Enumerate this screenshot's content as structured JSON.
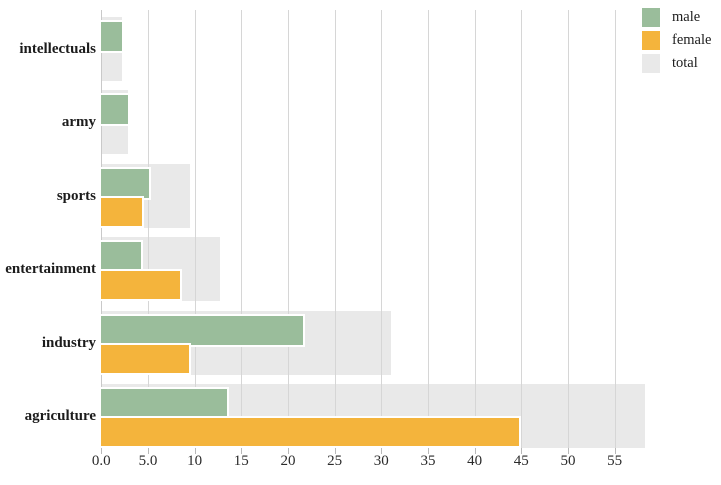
{
  "chart_data": {
    "type": "bar",
    "orientation": "horizontal",
    "title": "",
    "xlabel": "",
    "ylabel": "",
    "categories": [
      "intellectuals",
      "army",
      "sports",
      "entertainment",
      "industry",
      "agriculture"
    ],
    "series": [
      {
        "name": "male",
        "color": "#9abd9b",
        "values": [
          2.2,
          2.9,
          5.1,
          4.3,
          21.6,
          13.5
        ]
      },
      {
        "name": "female",
        "color": "#f4b43c",
        "values": [
          0.0,
          0.0,
          4.4,
          8.4,
          9.4,
          44.8
        ]
      },
      {
        "name": "total",
        "color": "#e9e9e9",
        "values": [
          2.2,
          2.9,
          9.5,
          12.7,
          31.0,
          58.3
        ]
      }
    ],
    "x_ticks": [
      {
        "label": "0.0",
        "value": 0
      },
      {
        "label": "5.0",
        "value": 5
      },
      {
        "label": "10",
        "value": 10
      },
      {
        "label": "15",
        "value": 15
      },
      {
        "label": "20",
        "value": 20
      },
      {
        "label": "25",
        "value": 25
      },
      {
        "label": "30",
        "value": 30
      },
      {
        "label": "35",
        "value": 35
      },
      {
        "label": "40",
        "value": 40
      },
      {
        "label": "45",
        "value": 45
      },
      {
        "label": "50",
        "value": 50
      },
      {
        "label": "55",
        "value": 55
      }
    ],
    "xlim": [
      0,
      58.3
    ],
    "grid": true,
    "legend": {
      "position": "top-right",
      "items": [
        {
          "label": "male",
          "color": "#9abd9b"
        },
        {
          "label": "female",
          "color": "#f4b43c"
        },
        {
          "label": "total",
          "color": "#e9e9e9"
        }
      ]
    }
  }
}
